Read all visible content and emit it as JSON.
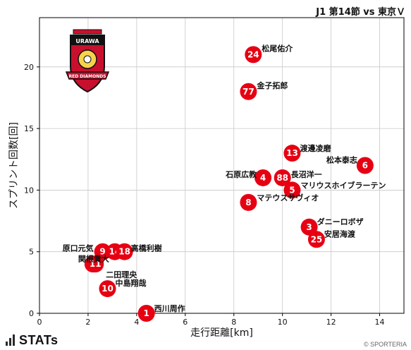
{
  "header": {
    "match_title": "J1 第14節 vs 東京Ｖ"
  },
  "footer": {
    "brand": "STATs",
    "copyright": "© SPORTERIA"
  },
  "logo": {
    "name": "crest-icon",
    "text_top": "URAWA",
    "text_bottom": "RED DIAMONDS"
  },
  "colors": {
    "point": "#e60012",
    "point_text": "#ffffff",
    "grid": "#c8c8c8",
    "axis": "#000000"
  },
  "chart_data": {
    "type": "scatter",
    "title": "",
    "xlabel": "走行距離[km]",
    "ylabel": "スプリント回数[回]",
    "xlim": [
      0,
      15
    ],
    "ylim": [
      0,
      24
    ],
    "xticks": [
      0,
      2,
      4,
      6,
      8,
      10,
      12,
      14
    ],
    "yticks": [
      0,
      5,
      10,
      15,
      20
    ],
    "grid": true,
    "points": [
      {
        "number": "24",
        "name": "松尾佑介",
        "x": 8.8,
        "y": 21
      },
      {
        "number": "77",
        "name": "金子拓郎",
        "x": 8.6,
        "y": 18
      },
      {
        "number": "13",
        "name": "渡邊凌磨",
        "x": 10.4,
        "y": 13
      },
      {
        "number": "6",
        "name": "松本泰志",
        "x": 13.4,
        "y": 12
      },
      {
        "number": "4",
        "name": "石原広教",
        "x": 9.2,
        "y": 11
      },
      {
        "number": "88",
        "name": "長沼洋一",
        "x": 10.0,
        "y": 11
      },
      {
        "number": "5",
        "name": "マリウスホイブラーテン",
        "x": 10.4,
        "y": 10
      },
      {
        "number": "8",
        "name": "マテウスサヴィオ",
        "x": 8.6,
        "y": 9
      },
      {
        "number": "3",
        "name": "ダニーロボザ",
        "x": 11.1,
        "y": 7
      },
      {
        "number": "25",
        "name": "安居海渡",
        "x": 11.4,
        "y": 6
      },
      {
        "number": "9",
        "name": "原口元気",
        "x": 2.6,
        "y": 5
      },
      {
        "number": "14",
        "name": "関根貴大",
        "x": 3.1,
        "y": 5
      },
      {
        "number": "18",
        "name": "高橋利樹",
        "x": 3.5,
        "y": 5
      },
      {
        "number": "41",
        "name": "",
        "x": 2.2,
        "y": 4
      },
      {
        "number": "11",
        "name": "二田理央",
        "x": 2.3,
        "y": 4
      },
      {
        "number": "10",
        "name": "中島翔哉",
        "x": 2.8,
        "y": 2
      },
      {
        "number": "1",
        "name": "西川周作",
        "x": 4.4,
        "y": 0
      }
    ]
  }
}
